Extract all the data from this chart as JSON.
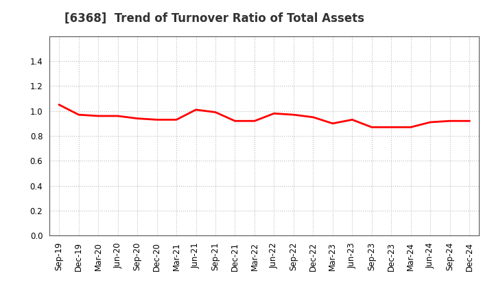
{
  "title": "[6368]  Trend of Turnover Ratio of Total Assets",
  "x_labels": [
    "Sep-19",
    "Dec-19",
    "Mar-20",
    "Jun-20",
    "Sep-20",
    "Dec-20",
    "Mar-21",
    "Jun-21",
    "Sep-21",
    "Dec-21",
    "Mar-22",
    "Jun-22",
    "Sep-22",
    "Dec-22",
    "Mar-23",
    "Jun-23",
    "Sep-23",
    "Dec-23",
    "Mar-24",
    "Jun-24",
    "Sep-24",
    "Dec-24"
  ],
  "values": [
    1.05,
    0.97,
    0.96,
    0.96,
    0.94,
    0.93,
    0.93,
    1.01,
    0.99,
    0.92,
    0.92,
    0.98,
    0.97,
    0.95,
    0.9,
    0.93,
    0.87,
    0.87,
    0.87,
    0.91,
    0.92,
    0.92
  ],
  "line_color": "#ff0000",
  "line_width": 2.0,
  "ylim": [
    0.0,
    1.6
  ],
  "yticks": [
    0.0,
    0.2,
    0.4,
    0.6,
    0.8,
    1.0,
    1.2,
    1.4
  ],
  "grid_color": "#bbbbbb",
  "background_color": "#ffffff",
  "title_fontsize": 12,
  "tick_fontsize": 8.5,
  "title_color": "#333333",
  "spine_color": "#555555"
}
